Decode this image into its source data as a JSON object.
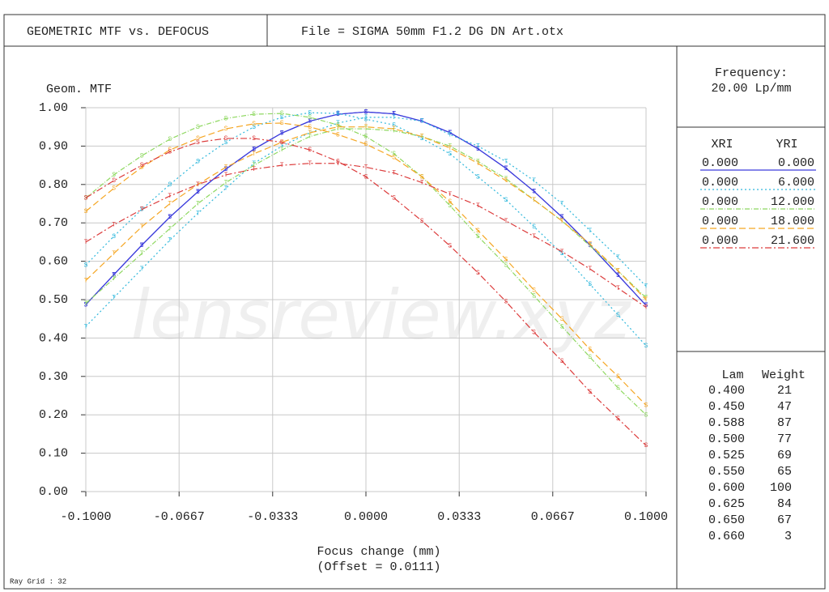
{
  "header": {
    "title": "GEOMETRIC MTF vs. DEFOCUS",
    "file": "File = SIGMA 50mm F1.2 DG DN Art.otx"
  },
  "chart_data": {
    "type": "line",
    "y_label": "Geom. MTF",
    "x_label": "Focus change (mm)",
    "x_label_note": "(Offset = 0.0111)",
    "watermark": "lensreview.xyz",
    "marker_labels": [
      "S",
      "T"
    ],
    "x": [
      -0.1,
      -0.09,
      -0.08,
      -0.07,
      -0.06,
      -0.05,
      -0.04,
      -0.03,
      -0.02,
      -0.01,
      0,
      0.01,
      0.02,
      0.03,
      0.04,
      0.05,
      0.06,
      0.07,
      0.08,
      0.09,
      0.1
    ],
    "xlim": [
      -0.1,
      0.1
    ],
    "ylim": [
      0,
      1
    ],
    "xticks": [
      {
        "value": -0.1,
        "label": "-0.1000"
      },
      {
        "value": -0.0667,
        "label": "-0.0667"
      },
      {
        "value": -0.0333,
        "label": "-0.0333"
      },
      {
        "value": 0,
        "label": "0.0000"
      },
      {
        "value": 0.0333,
        "label": "0.0333"
      },
      {
        "value": 0.0667,
        "label": "0.0667"
      },
      {
        "value": 0.1,
        "label": "0.1000"
      }
    ],
    "yticks": [
      {
        "value": 0,
        "label": "0.00"
      },
      {
        "value": 0.1,
        "label": "0.10"
      },
      {
        "value": 0.2,
        "label": "0.20"
      },
      {
        "value": 0.3,
        "label": "0.30"
      },
      {
        "value": 0.4,
        "label": "0.40"
      },
      {
        "value": 0.5,
        "label": "0.50"
      },
      {
        "value": 0.6,
        "label": "0.60"
      },
      {
        "value": 0.7,
        "label": "0.70"
      },
      {
        "value": 0.8,
        "label": "0.80"
      },
      {
        "value": 0.9,
        "label": "0.90"
      },
      {
        "value": 1,
        "label": "1.00"
      }
    ],
    "grid": true,
    "legend_headers": [
      "XRI",
      "YRI"
    ],
    "series": [
      {
        "xri": "0.000",
        "yri": "0.000",
        "color": "#3c3cdc",
        "dash": "none",
        "sagittal": [
          0.487,
          0.565,
          0.642,
          0.715,
          0.781,
          0.84,
          0.892,
          0.934,
          0.965,
          0.983,
          0.989,
          0.984,
          0.965,
          0.935,
          0.893,
          0.842,
          0.782,
          0.715,
          0.642,
          0.564,
          0.485
        ],
        "tangential": [
          0.487,
          0.565,
          0.642,
          0.715,
          0.781,
          0.84,
          0.892,
          0.934,
          0.965,
          0.983,
          0.989,
          0.984,
          0.965,
          0.935,
          0.893,
          0.842,
          0.782,
          0.715,
          0.642,
          0.564,
          0.485
        ]
      },
      {
        "xri": "0.000",
        "yri": "6.000",
        "color": "#30b8dc",
        "dash": "2,3",
        "sagittal": [
          0.59,
          0.665,
          0.735,
          0.8,
          0.86,
          0.91,
          0.95,
          0.975,
          0.987,
          0.985,
          0.97,
          0.955,
          0.92,
          0.88,
          0.82,
          0.76,
          0.69,
          0.62,
          0.54,
          0.46,
          0.38
        ],
        "tangential": [
          0.43,
          0.505,
          0.58,
          0.655,
          0.725,
          0.79,
          0.855,
          0.9,
          0.935,
          0.96,
          0.975,
          0.975,
          0.965,
          0.93,
          0.9,
          0.86,
          0.81,
          0.75,
          0.68,
          0.61,
          0.535
        ]
      },
      {
        "xri": "0.000",
        "yri": "12.000",
        "color": "#8ed860",
        "dash": "6,2,1,2",
        "sagittal": [
          0.765,
          0.825,
          0.875,
          0.918,
          0.95,
          0.972,
          0.983,
          0.985,
          0.975,
          0.955,
          0.925,
          0.88,
          0.82,
          0.745,
          0.665,
          0.59,
          0.51,
          0.43,
          0.35,
          0.27,
          0.2
        ],
        "tangential": [
          0.49,
          0.555,
          0.62,
          0.685,
          0.75,
          0.805,
          0.85,
          0.89,
          0.925,
          0.945,
          0.945,
          0.94,
          0.925,
          0.9,
          0.86,
          0.815,
          0.76,
          0.705,
          0.64,
          0.575,
          0.505
        ]
      },
      {
        "xri": "0.000",
        "yri": "18.000",
        "color": "#f5a623",
        "dash": "8,4",
        "sagittal": [
          0.73,
          0.79,
          0.845,
          0.89,
          0.92,
          0.945,
          0.958,
          0.96,
          0.95,
          0.93,
          0.905,
          0.87,
          0.82,
          0.755,
          0.68,
          0.605,
          0.525,
          0.45,
          0.37,
          0.3,
          0.225
        ],
        "tangential": [
          0.55,
          0.62,
          0.69,
          0.75,
          0.8,
          0.845,
          0.88,
          0.91,
          0.935,
          0.95,
          0.95,
          0.945,
          0.925,
          0.895,
          0.855,
          0.81,
          0.76,
          0.705,
          0.645,
          0.575,
          0.5
        ]
      },
      {
        "xri": "0.000",
        "yri": "21.600",
        "color": "#dc3c3c",
        "dash": "8,3,2,3",
        "sagittal": [
          0.765,
          0.81,
          0.85,
          0.885,
          0.91,
          0.92,
          0.92,
          0.91,
          0.89,
          0.86,
          0.82,
          0.765,
          0.705,
          0.64,
          0.57,
          0.495,
          0.415,
          0.34,
          0.26,
          0.19,
          0.12
        ],
        "tangential": [
          0.65,
          0.695,
          0.735,
          0.77,
          0.8,
          0.825,
          0.84,
          0.85,
          0.855,
          0.855,
          0.845,
          0.83,
          0.805,
          0.775,
          0.745,
          0.705,
          0.665,
          0.625,
          0.58,
          0.53,
          0.48
        ]
      }
    ]
  },
  "frequency": {
    "label": "Frequency:",
    "value": "20.00  Lp/mm"
  },
  "wavelengths": {
    "headers": [
      "Lam",
      "Weight"
    ],
    "rows": [
      [
        "0.400",
        21
      ],
      [
        "0.450",
        47
      ],
      [
        "0.588",
        87
      ],
      [
        "0.500",
        77
      ],
      [
        "0.525",
        69
      ],
      [
        "0.550",
        65
      ],
      [
        "0.600",
        100
      ],
      [
        "0.625",
        84
      ],
      [
        "0.650",
        67
      ],
      [
        "0.660",
        3
      ]
    ]
  },
  "footer": "Ray Grid : 32"
}
